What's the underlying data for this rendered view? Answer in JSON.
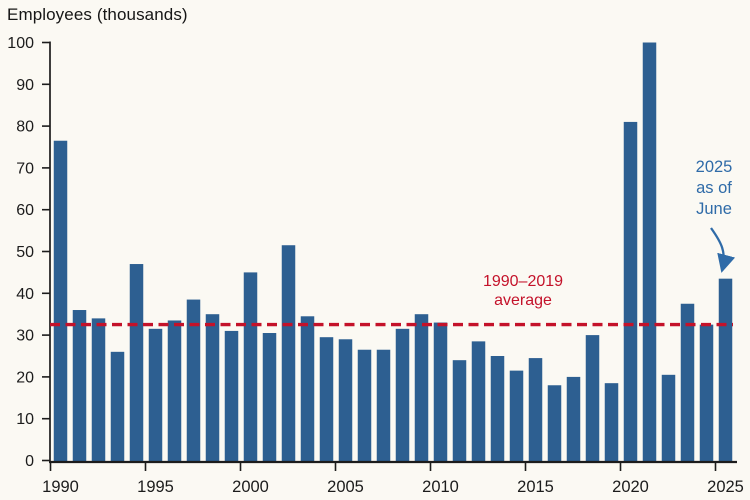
{
  "title": "Employees (thousands)",
  "chart_data": {
    "type": "bar",
    "title": "Employees (thousands)",
    "ylabel": "Employees (thousands)",
    "xlabel": "",
    "x": [
      1990,
      1991,
      1992,
      1993,
      1994,
      1995,
      1996,
      1997,
      1998,
      1999,
      2000,
      2001,
      2002,
      2003,
      2004,
      2005,
      2006,
      2007,
      2008,
      2009,
      2010,
      2011,
      2012,
      2013,
      2014,
      2015,
      2016,
      2017,
      2018,
      2019,
      2020,
      2021,
      2022,
      2023,
      2024,
      2025
    ],
    "values": [
      76.5,
      36,
      34,
      26,
      47,
      31.5,
      33.5,
      38.5,
      35,
      31,
      45,
      30.5,
      51.5,
      34.5,
      29.5,
      29,
      26.5,
      26.5,
      31.5,
      35,
      33,
      24,
      28.5,
      25,
      21.5,
      24.5,
      18,
      20,
      30,
      18.5,
      81,
      100,
      20.5,
      37.5,
      32.5,
      43.5
    ],
    "ylim": [
      0,
      100
    ],
    "ytick_step": 10,
    "xticks": [
      1990,
      1995,
      2000,
      2005,
      2010,
      2015,
      2020,
      2025
    ],
    "grid": false,
    "legend": "none",
    "bar_color": "#2d5f91",
    "background_color": "#fbf9f3",
    "axis_color": "#1c1c1c",
    "average_line": {
      "value": 32.5,
      "label_line1": "1990–2019",
      "label_line2": "average",
      "color": "#c4122a",
      "style": "dashed"
    },
    "annotation": {
      "lines": [
        "2025",
        "as of",
        "June"
      ],
      "target_year": 2025,
      "color": "#2f6ba8"
    }
  }
}
